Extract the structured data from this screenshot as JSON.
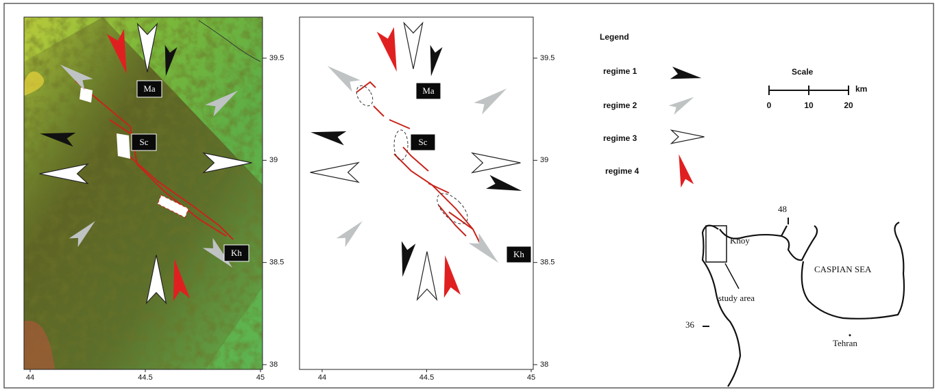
{
  "panels": [
    {
      "labels": [
        "Ma",
        "Sc",
        "Kh"
      ],
      "xticks": [
        44,
        44.5,
        45
      ],
      "yticks": [
        39.5,
        39,
        38.5,
        38
      ]
    },
    {
      "labels": [
        "Ma",
        "Sc",
        "Kh"
      ],
      "xticks": [
        44,
        44.5,
        45
      ],
      "yticks": [
        39.5,
        39,
        38.5,
        38
      ]
    }
  ],
  "legend": {
    "title": "Legend",
    "regimes": [
      "regime 1",
      "regime 2",
      "regime 3",
      "regime 4"
    ]
  },
  "scale": {
    "title": "Scale",
    "ticks": [
      0,
      10,
      20
    ],
    "unit": "km"
  },
  "inset": {
    "labels": [
      "48",
      "Khoy",
      "CASPIAN SEA",
      "study area",
      "36",
      "Tehran"
    ]
  }
}
